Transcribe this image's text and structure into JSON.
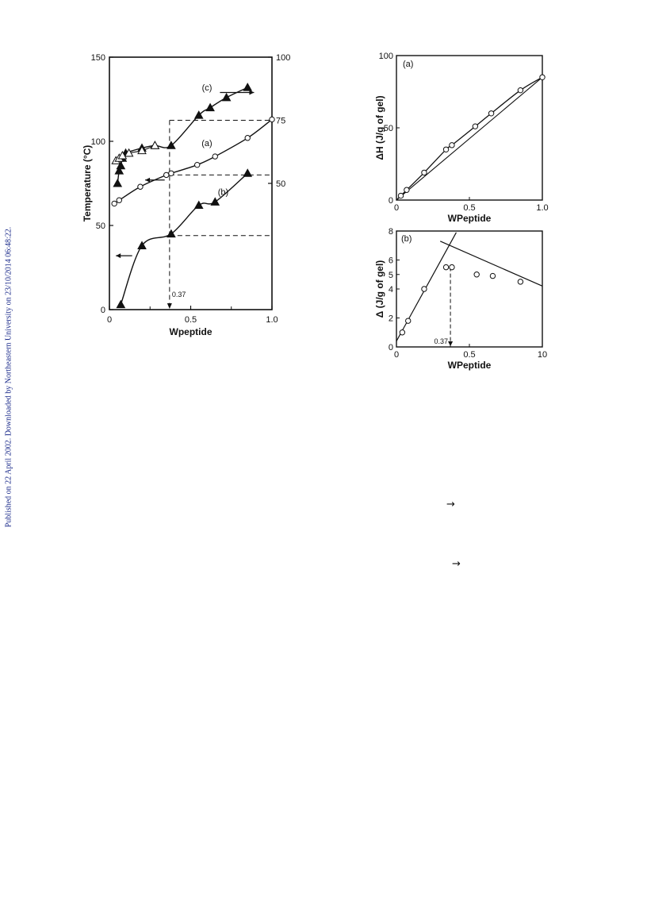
{
  "side_note": "Published on 22 April 2002. Downloaded by Northeastern University on 23/10/2014 06:48:22.",
  "glyphs": {
    "arrow1": "→",
    "arrow2": "→"
  },
  "chart_data": [
    {
      "type": "line",
      "panel": "left",
      "xlabel": "Wpeptide",
      "ylabel": "Temperature (°C)",
      "xlim": [
        0,
        1.0
      ],
      "ylim": [
        0,
        150
      ],
      "xticks": [
        "0",
        "0.5",
        "1.0"
      ],
      "yticks": [
        "0",
        "50",
        "100",
        "150"
      ],
      "y2lim": [
        0,
        100
      ],
      "y2ticks": [
        "50",
        "75",
        "100"
      ],
      "annotation": "0.37",
      "annotation_x": 0.37,
      "series": [
        {
          "name": "(a)",
          "marker": "open-circle",
          "axis": "left",
          "x": [
            0.03,
            0.06,
            0.19,
            0.35,
            0.38,
            0.54,
            0.65,
            0.85,
            1.0
          ],
          "y": [
            63,
            65,
            73,
            80,
            81,
            86,
            91,
            102,
            113
          ]
        },
        {
          "name": "(b)",
          "marker": "filled-triangle",
          "axis": "left",
          "x": [
            0.07,
            0.2,
            0.38,
            0.55,
            0.65,
            0.85
          ],
          "y": [
            3,
            38,
            45,
            62,
            64,
            81
          ]
        },
        {
          "name": "(c)",
          "marker": "filled-triangle",
          "axis": "right",
          "x": [
            0.05,
            0.06,
            0.07,
            0.08,
            0.1,
            0.2,
            0.28,
            0.38,
            0.55,
            0.62,
            0.72,
            0.85
          ],
          "y": [
            50,
            55,
            57,
            60,
            62,
            64,
            65,
            65,
            77,
            80,
            84,
            88
          ]
        },
        {
          "name": "(c) open",
          "marker": "open-triangle",
          "axis": "right",
          "x": [
            0.04,
            0.06,
            0.08,
            0.12,
            0.2,
            0.28
          ],
          "y": [
            59,
            60,
            61,
            62,
            63,
            65
          ]
        }
      ],
      "dashed_levels_left": [
        80,
        44
      ],
      "dashed_level_right": 75
    },
    {
      "type": "line",
      "panel": "top-right",
      "label": "(a)",
      "xlabel": "WPeptide",
      "ylabel": "ΔH (J/g of gel)",
      "xlim": [
        0,
        1.0
      ],
      "ylim": [
        0,
        100
      ],
      "xticks": [
        "0",
        "0.5",
        "1.0"
      ],
      "yticks": [
        "0",
        "50",
        "100"
      ],
      "points": {
        "x": [
          0.03,
          0.07,
          0.19,
          0.34,
          0.38,
          0.54,
          0.65,
          0.85,
          1.0
        ],
        "y": [
          3,
          7,
          19,
          35,
          38,
          51,
          60,
          76,
          85
        ]
      }
    },
    {
      "type": "line",
      "panel": "bottom-right",
      "label": "(b)",
      "xlabel": "WPeptide",
      "ylabel": "Δ (J/g of gel)",
      "xlim": [
        0,
        1.0
      ],
      "ylim": [
        0,
        8
      ],
      "xticks": [
        "0",
        "0.5",
        "10"
      ],
      "yticks": [
        "0",
        "2",
        "4",
        "5",
        "6",
        "8"
      ],
      "annotation": "0.37",
      "annotation_x": 0.37,
      "points": {
        "x": [
          0.04,
          0.08,
          0.19,
          0.34,
          0.38,
          0.55,
          0.66,
          0.85
        ],
        "y": [
          1.0,
          1.8,
          4.0,
          5.5,
          5.5,
          5.0,
          4.9,
          4.5
        ]
      }
    }
  ]
}
